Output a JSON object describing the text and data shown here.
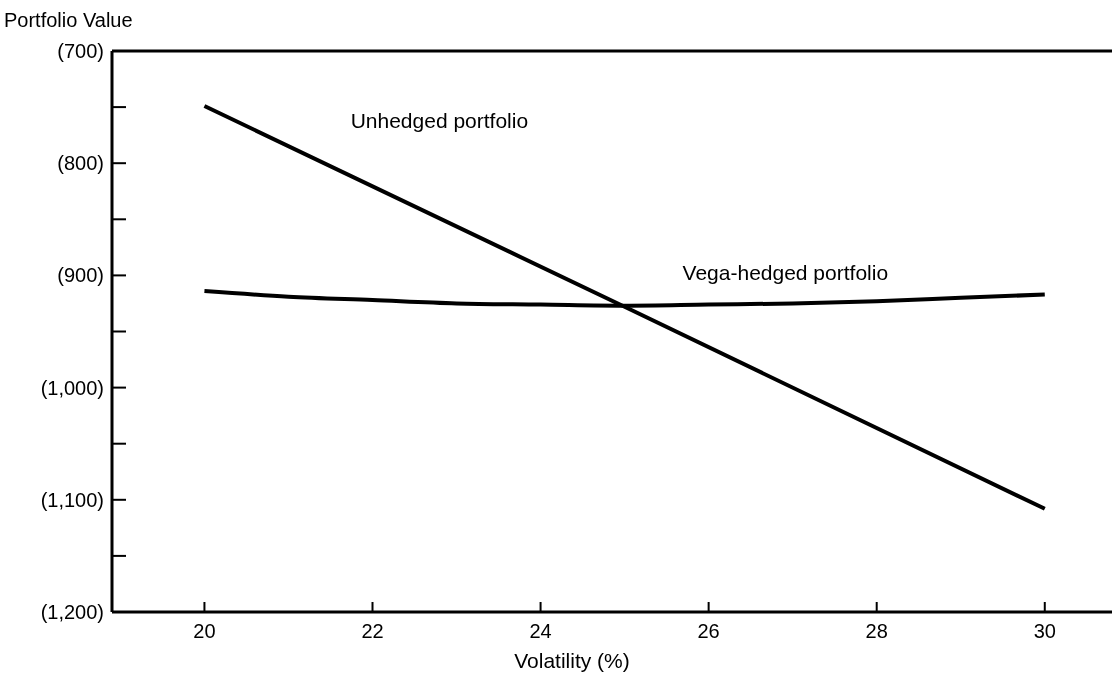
{
  "chart_data": {
    "type": "line",
    "xlabel": "Volatility (%)",
    "ylabel": "Portfolio Value",
    "series": [
      {
        "name": "Unhedged portfolio",
        "color": "#000000",
        "x": [
          20,
          25,
          30
        ],
        "values": [
          -749,
          -928,
          -1108
        ]
      },
      {
        "name": "Vega-hedged portfolio",
        "color": "#000000",
        "x": [
          20,
          21,
          22,
          23,
          24,
          25,
          26,
          27,
          28,
          29,
          30
        ],
        "values": [
          -914,
          -919,
          -922,
          -925,
          -926,
          -927,
          -926,
          -925,
          -923,
          -920,
          -917
        ]
      }
    ],
    "xlim": [
      18.9,
      30.8
    ],
    "xticks": [
      20,
      22,
      24,
      26,
      28,
      30
    ],
    "ylim": [
      -1200,
      -700
    ],
    "yticks": [
      {
        "value": -700,
        "label": "(700)"
      },
      {
        "value": -750,
        "label": null
      },
      {
        "value": -800,
        "label": "(800)"
      },
      {
        "value": -850,
        "label": null
      },
      {
        "value": -900,
        "label": "(900)"
      },
      {
        "value": -950,
        "label": null
      },
      {
        "value": -1000,
        "label": "(1,000)"
      },
      {
        "value": -1050,
        "label": null
      },
      {
        "value": -1100,
        "label": "(1,100)"
      },
      {
        "value": -1150,
        "label": null
      },
      {
        "value": -1200,
        "label": "(1,200)"
      }
    ],
    "grid": false,
    "marker": "none",
    "line_style": "solid"
  }
}
